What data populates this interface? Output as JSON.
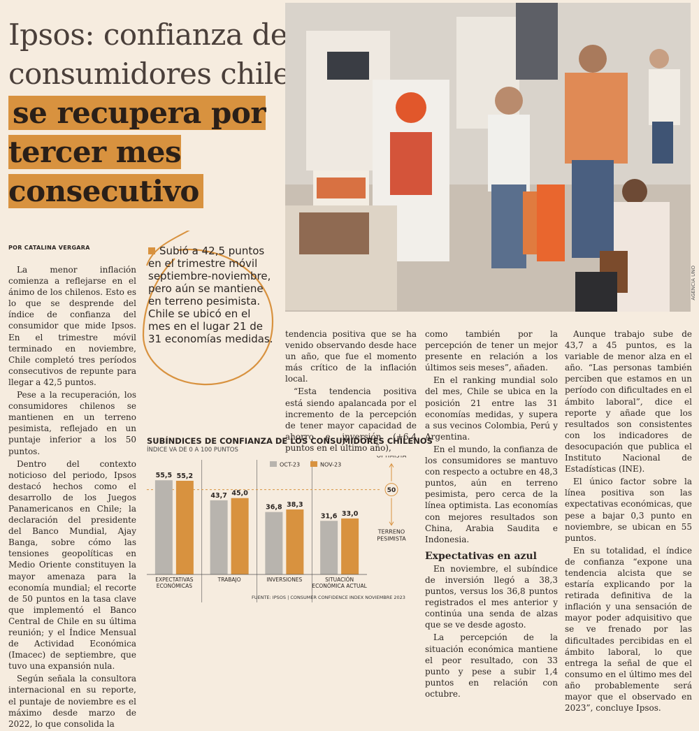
{
  "headline": {
    "plain": "Ipsos: confianza de los consumidores chilenos",
    "highlight": "se recupera por tercer mes consecutivo"
  },
  "byline": "POR CATALINA VERGARA",
  "photo_credit": "AGENCIA UNO",
  "callout": "Subió a 42,5 puntos en el trimestre móvil septiembre-noviembre, pero aún se mantiene en terreno pesimista. Chile se ubicó en el mes en el lugar 21 de 31 economías medidas.",
  "col1": [
    "La menor inflación comienza a reflejarse en el ánimo de los chilenos. Esto es lo que se desprende del índice de confianza del consumidor que mide Ipsos. En el trimestre móvil terminado en noviembre, Chile completó tres períodos consecutivos de repunte para llegar a 42,5 puntos.",
    "Pese a la recuperación, los consumidores chilenos se mantienen en un terreno pesimista, reflejado en un puntaje inferior a los 50 puntos.",
    "Dentro del contexto noticioso del periodo, Ipsos destacó hechos como el desarrollo de los Juegos Panamericanos en Chile; la declaración del presidente del Banco Mundial, Ajay Banga, sobre cómo las tensiones geopolíticas en Medio Oriente constituyen la mayor amenaza para la economía mundial; el recorte de 50 puntos en la tasa clave que implementó el Banco Central de Chile en su última reunión; y el Índice Mensual de Actividad Económica (Imacec) de septiembre, que tuvo una expansión nula.",
    "Según señala la consultora internacional en su reporte, el puntaje de noviembre es el máximo desde marzo de 2022, lo que consolida la"
  ],
  "col2": [
    "tendencia positiva que se ha venido observando desde hace un año, que fue el momento más crítico de la inflación local.",
    "“Esta tendencia positiva está siendo apalancada por el incremento de la percepción de tener mayor capacidad de ahorro e inversión (+6,4 puntos en el último año),"
  ],
  "col3": {
    "p1": "como también por la percepción de tener un mejor presente en relación a los últimos seis meses”, añaden.",
    "p2": "En el ranking mundial solo del mes, Chile se ubica en la posición 21 entre las 31 economías medidas, y supera a sus vecinos Colombia, Perú y Argentina.",
    "p3": "En el mundo, la confianza de los consumidores se mantuvo con respecto a octubre en 48,3 puntos, aún en terreno pesimista, pero cerca de la línea optimista. Las economías con mejores resultados son China, Arabia Saudita e Indonesia.",
    "subhead": "Expectativas en azul",
    "p4": "En noviembre, el subíndice de inversión llegó a 38,3 puntos, versus los 36,8 puntos registrados el mes anterior y continúa una senda de alzas que se ve desde agosto.",
    "p5": "La percepción de la situación económica mantiene el peor resultado, con 33 punto y pese a subir 1,4 puntos en relación con octubre."
  },
  "col4": [
    "Aunque trabajo sube de 43,7 a 45 puntos, es la variable de menor alza en el año. “Las personas también perciben que estamos en un período con dificultades en el ámbito laboral”, dice el reporte y añade que los resultados son consistentes con los indicadores de desocupación que publica el Instituto Nacional de Estadísticas (INE).",
    "El único factor sobre la línea positiva son las expectativas económicas, que pese a bajar 0,3 punto en noviembre, se ubican en 55 puntos.",
    "En su totalidad, el índice de confianza “expone una tendencia alcista que se estaría explicando por la retirada definitiva de la inflación y una sensación de mayor poder adquisitivo que se ve frenado por las dificultades percibidas en el ámbito laboral, lo que entrega la señal de que el consumo en el último mes del año probablemente será mayor que el observado en 2023”, concluye Ipsos."
  ],
  "chart_data": {
    "type": "bar",
    "title": "SUBÍNDICES DE CONFIANZA DE LOS CONSUMIDORES CHILENOS",
    "subtitle": "ÍNDICE VA DE 0 A 100 PUNTOS",
    "categories": [
      "EXPECTATIVAS ECONÓMICAS",
      "TRABAJO",
      "INVERSIONES",
      "SITUACIÓN ECONÓMICA ACTUAL"
    ],
    "series": [
      {
        "name": "OCT-23",
        "values": [
          55.5,
          43.7,
          36.8,
          31.6
        ],
        "labels": [
          "55,5",
          "43,7",
          "36,8",
          "31,6"
        ],
        "color": "#b8b4ae"
      },
      {
        "name": "NOV-23",
        "values": [
          55.2,
          45.0,
          38.3,
          33.0
        ],
        "labels": [
          "55,2",
          "45,0",
          "38,3",
          "33,0"
        ],
        "color": "#d8923f"
      }
    ],
    "reference": {
      "value": 50,
      "label": "50",
      "above": "TERRENO OPTIMISTA",
      "below": "TERRENO PESIMISTA"
    },
    "ylim": [
      0,
      70
    ],
    "source": "FUENTE: IPSOS | CONSUMER CONFIDENCE INDEX NOVIEMBRE 2023"
  },
  "colors": {
    "accent": "#d8923f",
    "grey": "#b8b4ae",
    "paper": "#f6ecdf"
  }
}
